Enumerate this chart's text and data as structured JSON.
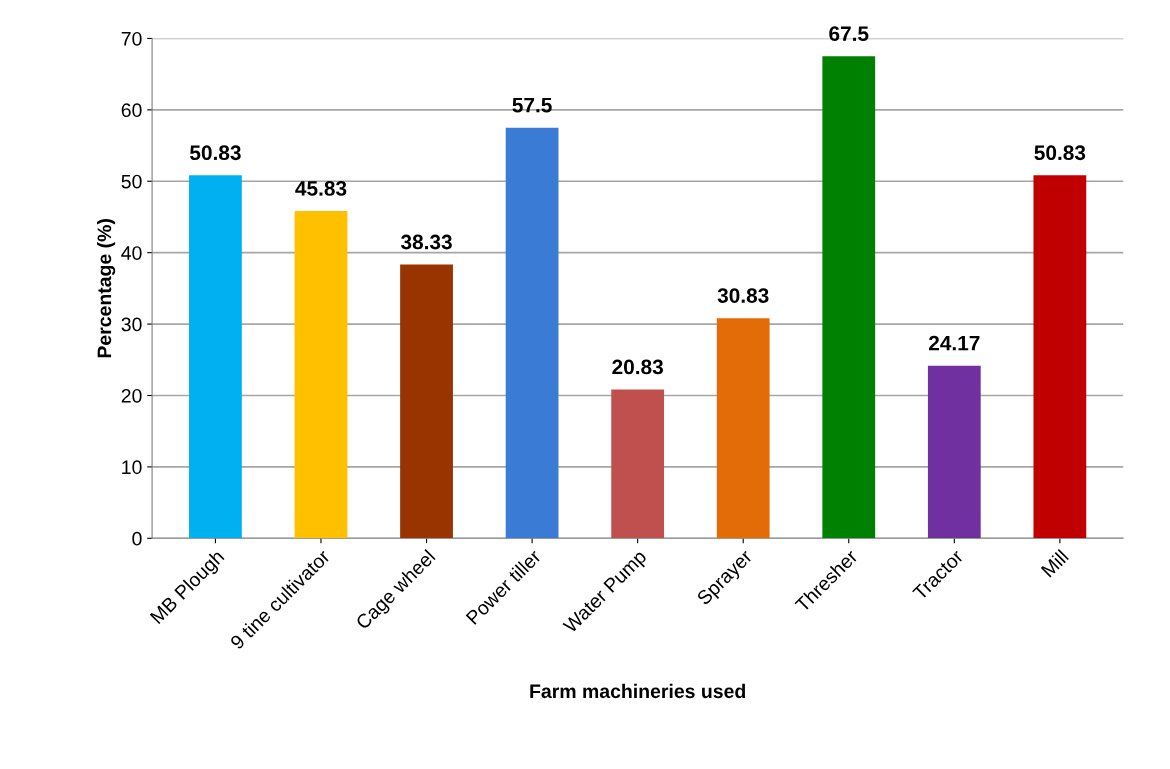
{
  "chart_data": {
    "type": "bar",
    "xlabel": "Farm machineries used",
    "ylabel": "Percentage (%)",
    "categories": [
      "MB Plough",
      "9 tine cultivator",
      "Cage wheel",
      "Power tiller",
      "Water Pump",
      "Sprayer",
      "Thresher",
      "Tractor",
      "Mill"
    ],
    "values": [
      50.83,
      45.83,
      38.33,
      57.5,
      20.83,
      30.83,
      67.5,
      24.17,
      50.83
    ],
    "colors": [
      "#00b0f0",
      "#ffc000",
      "#993300",
      "#3a7bd5",
      "#c0504d",
      "#e36c09",
      "#008000",
      "#7030a0",
      "#c00000"
    ],
    "ylim": [
      0,
      70
    ],
    "yticks": [
      0,
      10,
      20,
      30,
      40,
      50,
      60,
      70
    ],
    "grid": "y",
    "data_labels": true
  }
}
